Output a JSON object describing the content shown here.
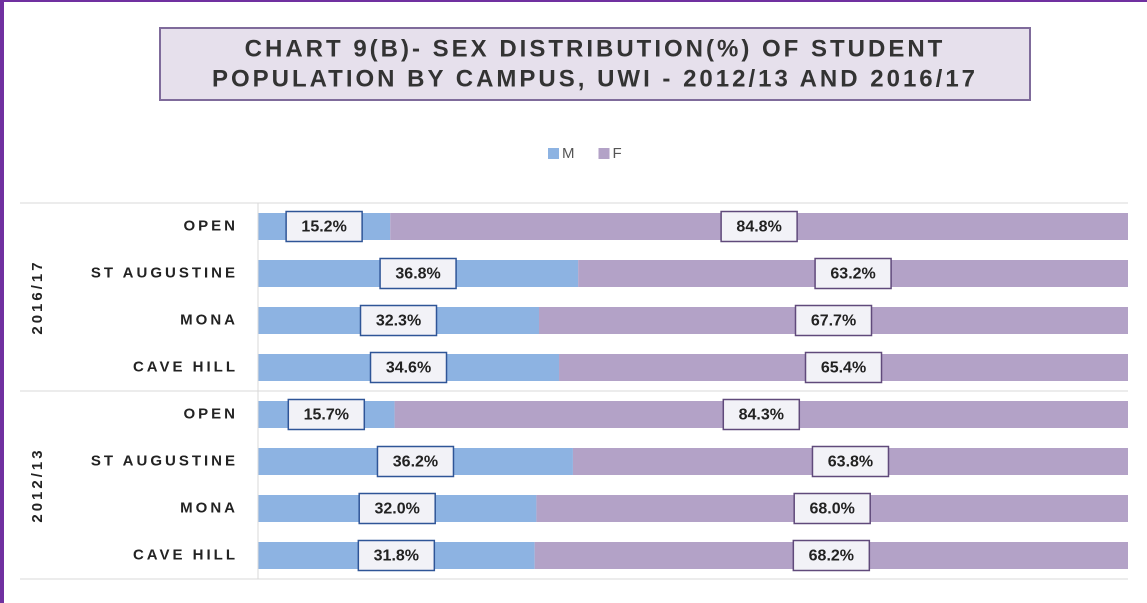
{
  "chart_data": {
    "type": "stacked-bar-horizontal",
    "title": [
      "CHART 9(B)- SEX DISTRIBUTION(%) OF STUDENT",
      "POPULATION BY CAMPUS, UWI - 2012/13 AND 2016/17"
    ],
    "groups": [
      {
        "name": "2016/17",
        "categories": [
          "OPEN",
          "ST AUGUSTINE",
          "MONA",
          "CAVE HILL"
        ]
      },
      {
        "name": "2012/13",
        "categories": [
          "OPEN",
          "ST AUGUSTINE",
          "MONA",
          "CAVE HILL"
        ]
      }
    ],
    "xlim": [
      0,
      100
    ],
    "legend": "top",
    "series": [
      {
        "name": "M",
        "color": "#8db3e2",
        "label_border": "#2f5597",
        "values": [
          15.2,
          36.8,
          32.3,
          34.6,
          15.7,
          36.2,
          32.0,
          31.8
        ],
        "value_labels": [
          "15.2%",
          "36.8%",
          "32.3%",
          "34.6%",
          "15.7%",
          "36.2%",
          "32.0%",
          "31.8%"
        ]
      },
      {
        "name": "F",
        "color": "#b3a2c7",
        "label_border": "#604a7b",
        "values": [
          84.8,
          63.2,
          67.7,
          65.4,
          84.3,
          63.8,
          68.0,
          68.2
        ],
        "value_labels": [
          "84.8%",
          "63.2%",
          "67.7%",
          "65.4%",
          "84.3%",
          "63.8%",
          "68.0%",
          "68.2%"
        ]
      }
    ]
  }
}
